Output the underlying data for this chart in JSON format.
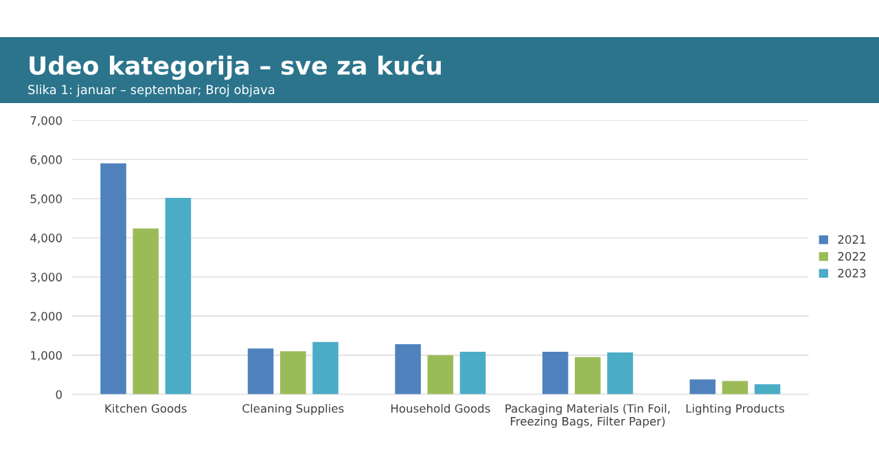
{
  "chart_data": {
    "type": "bar",
    "title": "Udeo kategorija – sve za kuću",
    "subtitle": "Slika 1: januar – septembar; Broj objava",
    "categories": [
      "Kitchen Goods",
      "Cleaning Supplies",
      "Household Goods",
      "Packaging Materials (Tin Foil, Freezing Bags, Filter Paper)",
      "Lighting Products"
    ],
    "series": [
      {
        "name": "2021",
        "color": "#4f81bd",
        "values": [
          5900,
          1170,
          1280,
          1090,
          380
        ]
      },
      {
        "name": "2022",
        "color": "#9bbb59",
        "values": [
          4240,
          1100,
          1000,
          950,
          340
        ]
      },
      {
        "name": "2023",
        "color": "#4bacc6",
        "values": [
          5020,
          1340,
          1090,
          1070,
          260
        ]
      }
    ],
    "ylim": [
      0,
      7000
    ],
    "yticks": [
      0,
      {
        "value": 1000,
        "label": "1,000"
      },
      {
        "value": 2000,
        "label": "2,000"
      },
      {
        "value": 3000,
        "label": "3,000"
      },
      {
        "value": 4000,
        "label": "4,000"
      },
      {
        "value": 5000,
        "label": "5,000"
      },
      {
        "value": 6000,
        "label": "6,000"
      },
      {
        "value": 7000,
        "label": "7,000"
      }
    ],
    "grid": "y",
    "legend": "right"
  }
}
